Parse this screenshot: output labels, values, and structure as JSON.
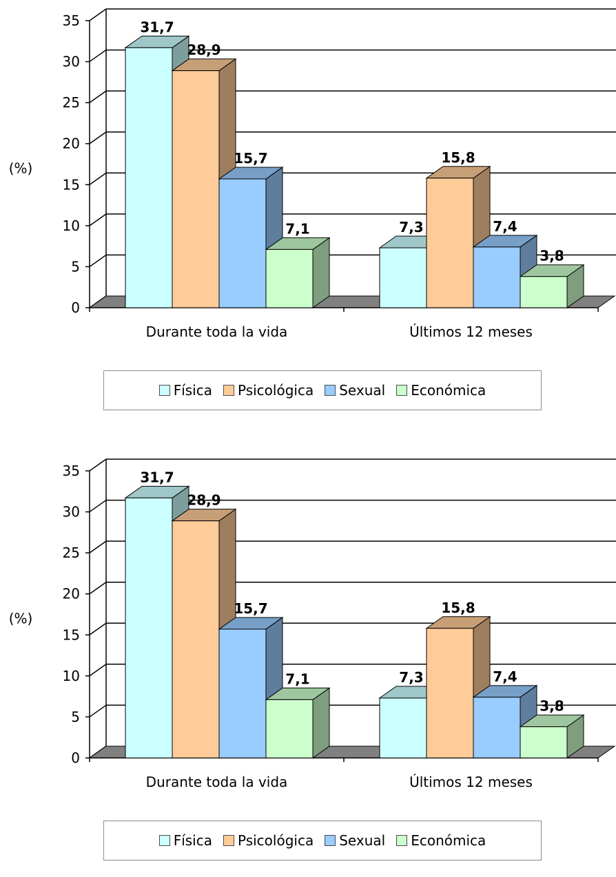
{
  "chart_data": [
    {
      "type": "bar",
      "title": "",
      "xlabel": "",
      "ylabel": "(%)",
      "ylim": [
        0,
        35
      ],
      "yticks": [
        0,
        5,
        10,
        15,
        20,
        25,
        30,
        35
      ],
      "grid": true,
      "legend_position": "bottom",
      "categories": [
        "Durante toda la vida",
        "Últimos 12 meses"
      ],
      "series": [
        {
          "name": "Física",
          "values": [
            31.7,
            7.3
          ],
          "value_labels": [
            "31,7",
            "7,3"
          ],
          "color": "#ccffff"
        },
        {
          "name": "Psicológica",
          "values": [
            28.9,
            15.8
          ],
          "value_labels": [
            "28,9",
            "15,8"
          ],
          "color": "#ffcc99"
        },
        {
          "name": "Sexual",
          "values": [
            15.7,
            7.4
          ],
          "value_labels": [
            "15,7",
            "7,4"
          ],
          "color": "#99ccff"
        },
        {
          "name": "Económica",
          "values": [
            7.1,
            3.8
          ],
          "value_labels": [
            "7,1",
            "3,8"
          ],
          "color": "#ccffcc"
        }
      ]
    },
    {
      "type": "bar",
      "title": "",
      "xlabel": "",
      "ylabel": "(%)",
      "ylim": [
        0,
        35
      ],
      "yticks": [
        0,
        5,
        10,
        15,
        20,
        25,
        30,
        35
      ],
      "grid": true,
      "legend_position": "bottom",
      "categories": [
        "Durante toda la vida",
        "Últimos 12 meses"
      ],
      "series": [
        {
          "name": "Física",
          "values": [
            31.7,
            7.3
          ],
          "value_labels": [
            "31,7",
            "7,3"
          ],
          "color": "#ccffff"
        },
        {
          "name": "Psicológica",
          "values": [
            28.9,
            15.8
          ],
          "value_labels": [
            "28,9",
            "15,8"
          ],
          "color": "#ffcc99"
        },
        {
          "name": "Sexual",
          "values": [
            15.7,
            7.4
          ],
          "value_labels": [
            "15,7",
            "7,4"
          ],
          "color": "#99ccff"
        },
        {
          "name": "Económica",
          "values": [
            7.1,
            3.8
          ],
          "value_labels": [
            "7,1",
            "3,8"
          ],
          "color": "#ccffcc"
        }
      ]
    }
  ]
}
